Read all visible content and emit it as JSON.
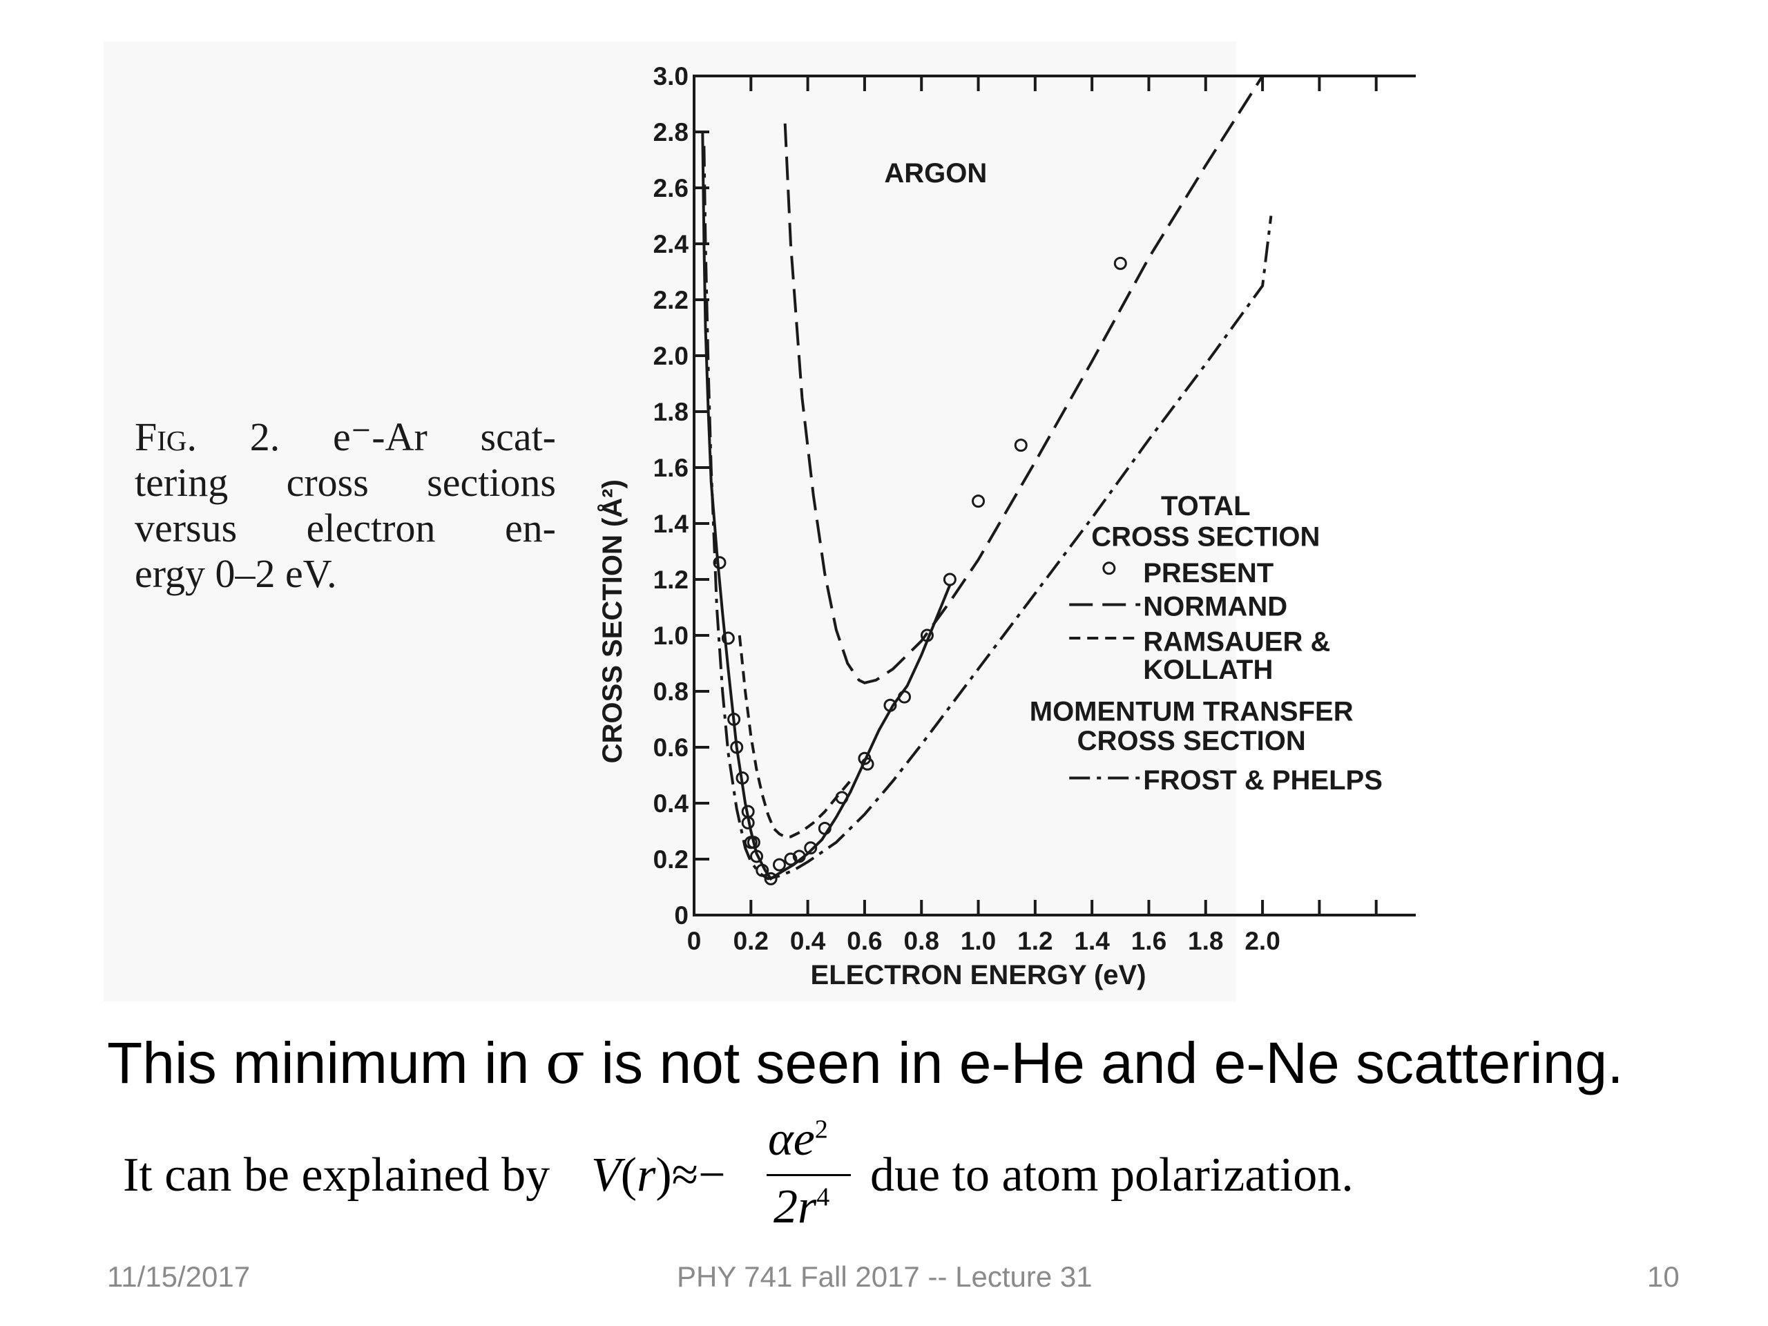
{
  "figure_caption": {
    "fig_label": "Fig. 2.",
    "line1_rest": "e⁻-Ar scat-",
    "line2": "tering cross sections",
    "line3": "versus electron en-",
    "line4": "ergy 0–2 eV."
  },
  "chart_data": {
    "type": "line",
    "title": "ARGON",
    "xlabel": "ELECTRON ENERGY (eV)",
    "ylabel": "CROSS SECTION (Å²)",
    "xlim": [
      0,
      2.6
    ],
    "ylim": [
      0,
      3.0
    ],
    "x_ticks": [
      "0",
      "0.2",
      "0.4",
      "0.6",
      "0.8",
      "1.0",
      "1.2",
      "1.4",
      "1.6",
      "1.8",
      "2.0"
    ],
    "y_ticks": [
      "0",
      "0.2",
      "0.4",
      "0.6",
      "0.8",
      "1.0",
      "1.2",
      "1.4",
      "1.6",
      "1.8",
      "2.0",
      "2.2",
      "2.4",
      "2.6",
      "2.8",
      "3.0"
    ],
    "grid": false,
    "legend": {
      "position": "right",
      "group1_title_line1": "TOTAL",
      "group1_title_line2": "CROSS SECTION",
      "present": "PRESENT",
      "normand": "NORMAND",
      "ramsauer_line1": "RAMSAUER &",
      "ramsauer_line2": "KOLLATH",
      "group2_title_line1": "MOMENTUM TRANSFER",
      "group2_title_line2": "CROSS SECTION",
      "frost": "FROST & PHELPS"
    },
    "series": [
      {
        "name": "PRESENT",
        "style": "markers",
        "x": [
          0.09,
          0.12,
          0.14,
          0.15,
          0.17,
          0.19,
          0.19,
          0.2,
          0.21,
          0.22,
          0.24,
          0.27,
          0.3,
          0.34,
          0.37,
          0.41,
          0.46,
          0.52,
          0.6,
          0.61,
          0.69,
          0.74,
          0.82,
          0.9,
          1.0,
          1.15,
          1.5
        ],
        "y": [
          1.26,
          0.99,
          0.7,
          0.6,
          0.49,
          0.37,
          0.33,
          0.26,
          0.26,
          0.21,
          0.16,
          0.13,
          0.18,
          0.2,
          0.21,
          0.24,
          0.31,
          0.42,
          0.56,
          0.54,
          0.75,
          0.78,
          1.0,
          1.2,
          1.48,
          1.68,
          2.33
        ]
      },
      {
        "name": "NORMAND",
        "style": "long-dash",
        "x": [
          0.32,
          0.34,
          0.38,
          0.42,
          0.46,
          0.5,
          0.54,
          0.58,
          0.6,
          0.64,
          0.7,
          0.8,
          0.9,
          1.0,
          1.2,
          1.4,
          1.6,
          1.8,
          2.0
        ],
        "y": [
          2.83,
          2.4,
          1.85,
          1.5,
          1.22,
          1.02,
          0.9,
          0.84,
          0.83,
          0.84,
          0.88,
          0.98,
          1.12,
          1.27,
          1.62,
          1.98,
          2.35,
          2.68,
          3.0
        ]
      },
      {
        "name": "RAMSAUER & KOLLATH",
        "style": "short-dash",
        "x": [
          0.16,
          0.18,
          0.2,
          0.22,
          0.24,
          0.26,
          0.28,
          0.3,
          0.32,
          0.34,
          0.38,
          0.42,
          0.46,
          0.5,
          0.55
        ],
        "y": [
          1.0,
          0.8,
          0.64,
          0.52,
          0.43,
          0.36,
          0.31,
          0.29,
          0.28,
          0.28,
          0.3,
          0.33,
          0.37,
          0.42,
          0.48
        ]
      },
      {
        "name": "PRESENT fit",
        "style": "solid",
        "x": [
          0.03,
          0.035,
          0.04,
          0.05,
          0.06,
          0.08,
          0.1,
          0.12,
          0.15,
          0.18,
          0.2,
          0.22,
          0.25,
          0.27,
          0.3,
          0.35,
          0.4,
          0.45,
          0.5,
          0.55,
          0.6,
          0.65,
          0.7,
          0.75,
          0.8,
          0.9
        ],
        "y": [
          2.8,
          2.4,
          2.1,
          1.8,
          1.55,
          1.3,
          1.08,
          0.88,
          0.6,
          0.4,
          0.3,
          0.22,
          0.16,
          0.13,
          0.15,
          0.18,
          0.22,
          0.27,
          0.35,
          0.44,
          0.55,
          0.66,
          0.75,
          0.82,
          0.93,
          1.18
        ]
      },
      {
        "name": "FROST & PHELPS",
        "style": "dash-dot",
        "x": [
          0.035,
          0.04,
          0.05,
          0.06,
          0.08,
          0.1,
          0.12,
          0.15,
          0.18,
          0.2,
          0.23,
          0.26,
          0.3,
          0.35,
          0.4,
          0.5,
          0.6,
          0.7,
          0.8,
          1.0,
          1.2,
          1.4,
          1.6,
          1.8,
          2.0,
          2.03
        ],
        "y": [
          2.75,
          2.4,
          1.95,
          1.6,
          1.1,
          0.8,
          0.58,
          0.38,
          0.24,
          0.19,
          0.15,
          0.13,
          0.14,
          0.16,
          0.19,
          0.26,
          0.36,
          0.48,
          0.61,
          0.88,
          1.15,
          1.42,
          1.7,
          1.97,
          2.25,
          2.5
        ]
      }
    ]
  },
  "statement": {
    "before": "This minimum in ",
    "sigma": "σ",
    "after": " is not seen in e-He and e-Ne scattering."
  },
  "formula": {
    "lead": "It can be explained by",
    "V": "V",
    "lparen": "(",
    "r": "r",
    "rparen": ")",
    "approx": "≈",
    "minus": "−",
    "num_alpha_e": "αe",
    "num_exp": "2",
    "den_2r": "2r",
    "den_exp": "4",
    "tail": "due to atom polarization."
  },
  "footer": {
    "date": "11/15/2017",
    "course": "PHY 741  Fall 2017 -- Lecture 31",
    "page": "10"
  }
}
